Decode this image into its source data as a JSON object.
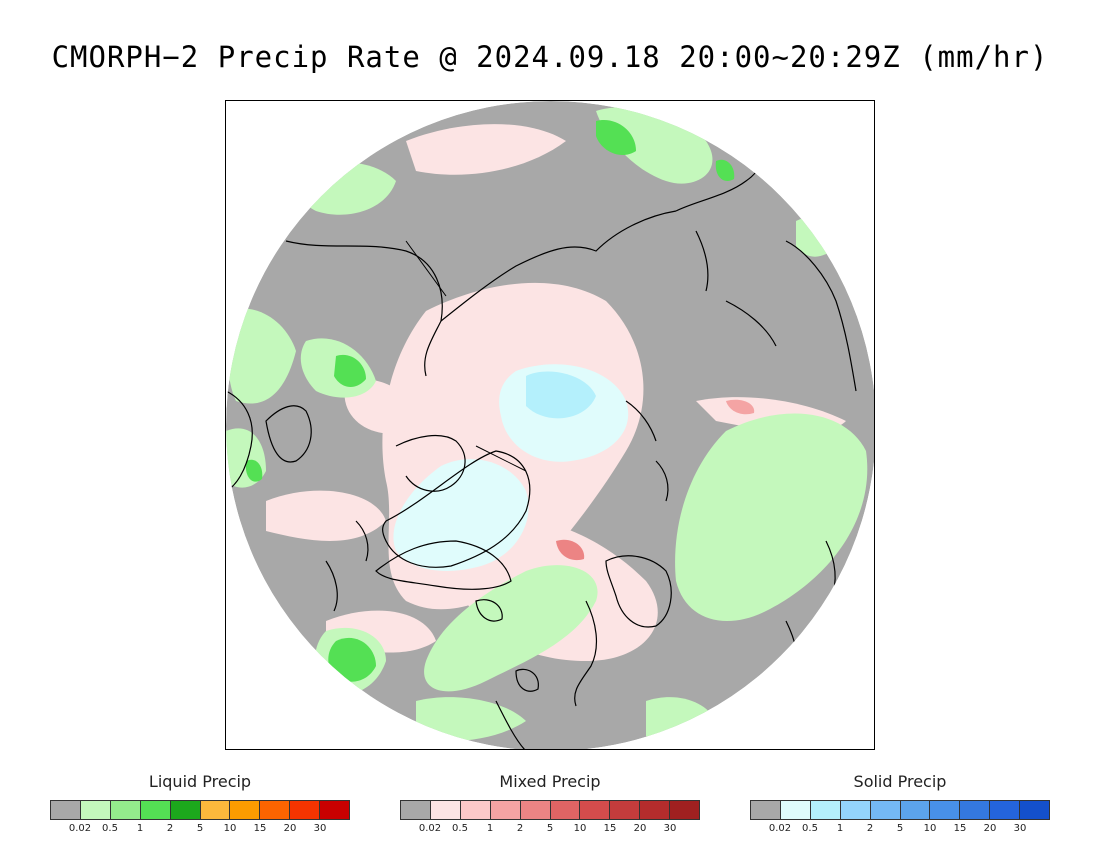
{
  "title": "CMORPH−2 Precip Rate @ 2024.09.18 20:00~20:29Z (mm/hr)",
  "map": {
    "projection": "north-polar-stereographic",
    "colors": {
      "background": "#a8a8a8",
      "land_outline": "#000000",
      "frame": "#000000"
    }
  },
  "legends": [
    {
      "key": "liquid",
      "title": "Liquid Precip",
      "colors": [
        "#a8a8a8",
        "#c4f8bc",
        "#94ec8c",
        "#54e054",
        "#1ca81c",
        "#fcb83c",
        "#fc9c00",
        "#fc6400",
        "#f43400",
        "#c80000"
      ],
      "ticks": [
        "0.02",
        "0.5",
        "1",
        "2",
        "5",
        "10",
        "15",
        "20",
        "30"
      ]
    },
    {
      "key": "mixed",
      "title": "Mixed Precip",
      "colors": [
        "#a8a8a8",
        "#fce4e4",
        "#fcc8c8",
        "#f4a4a4",
        "#ec8484",
        "#e06464",
        "#d44c4c",
        "#c43c3c",
        "#b42c2c",
        "#a02020"
      ],
      "ticks": [
        "0.02",
        "0.5",
        "1",
        "2",
        "5",
        "10",
        "15",
        "20",
        "30"
      ]
    },
    {
      "key": "solid",
      "title": "Solid Precip",
      "colors": [
        "#a8a8a8",
        "#e0fcfc",
        "#b4f0fc",
        "#94d4fc",
        "#74b8f4",
        "#5ca4ec",
        "#4890e8",
        "#3478e0",
        "#2464dc",
        "#1450cc"
      ],
      "ticks": [
        "0.02",
        "0.5",
        "1",
        "2",
        "5",
        "10",
        "15",
        "20",
        "30"
      ]
    }
  ]
}
